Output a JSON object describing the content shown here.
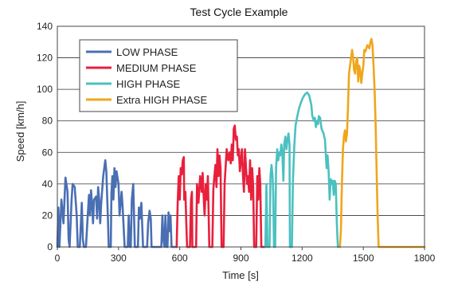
{
  "chart_data": {
    "type": "line",
    "title": "Test Cycle Example",
    "xlabel": "Time [s]",
    "ylabel": "Speed [km/h]",
    "xlim": [
      0,
      1800
    ],
    "ylim": [
      0,
      140
    ],
    "xticks": [
      0,
      300,
      600,
      900,
      1200,
      1500,
      1800
    ],
    "yticks": [
      0,
      20,
      40,
      60,
      80,
      100,
      120,
      140
    ],
    "grid": "horizontal",
    "legend_position": "top-left",
    "series": [
      {
        "name": "LOW PHASE",
        "color": "#4a6fb3",
        "points": [
          [
            0,
            0
          ],
          [
            5,
            25
          ],
          [
            10,
            0
          ],
          [
            20,
            30
          ],
          [
            30,
            15
          ],
          [
            40,
            44
          ],
          [
            50,
            35
          ],
          [
            55,
            5
          ],
          [
            60,
            0
          ],
          [
            70,
            30
          ],
          [
            75,
            40
          ],
          [
            85,
            38
          ],
          [
            95,
            20
          ],
          [
            100,
            0
          ],
          [
            110,
            0
          ],
          [
            120,
            28
          ],
          [
            125,
            5
          ],
          [
            130,
            0
          ],
          [
            140,
            0
          ],
          [
            150,
            22
          ],
          [
            155,
            33
          ],
          [
            160,
            20
          ],
          [
            165,
            36
          ],
          [
            170,
            28
          ],
          [
            175,
            15
          ],
          [
            180,
            30
          ],
          [
            190,
            32
          ],
          [
            195,
            18
          ],
          [
            200,
            38
          ],
          [
            205,
            30
          ],
          [
            210,
            15
          ],
          [
            215,
            28
          ],
          [
            225,
            45
          ],
          [
            235,
            55
          ],
          [
            240,
            48
          ],
          [
            248,
            18
          ],
          [
            252,
            0
          ],
          [
            262,
            0
          ],
          [
            265,
            34
          ],
          [
            270,
            45
          ],
          [
            275,
            30
          ],
          [
            280,
            50
          ],
          [
            285,
            38
          ],
          [
            290,
            48
          ],
          [
            300,
            40
          ],
          [
            305,
            20
          ],
          [
            315,
            35
          ],
          [
            320,
            25
          ],
          [
            330,
            0
          ],
          [
            345,
            0
          ],
          [
            350,
            20
          ],
          [
            355,
            0
          ],
          [
            360,
            0
          ],
          [
            365,
            30
          ],
          [
            372,
            40
          ],
          [
            380,
            0
          ],
          [
            395,
            0
          ],
          [
            400,
            25
          ],
          [
            405,
            18
          ],
          [
            412,
            28
          ],
          [
            420,
            0
          ],
          [
            440,
            0
          ],
          [
            445,
            15
          ],
          [
            452,
            23
          ],
          [
            458,
            18
          ],
          [
            462,
            0
          ],
          [
            510,
            0
          ],
          [
            515,
            20
          ],
          [
            520,
            5
          ],
          [
            525,
            0
          ],
          [
            530,
            20
          ],
          [
            535,
            0
          ],
          [
            540,
            0
          ],
          [
            545,
            22
          ],
          [
            550,
            10
          ],
          [
            555,
            20
          ],
          [
            560,
            0
          ],
          [
            585,
            0
          ]
        ]
      },
      {
        "name": "MEDIUM PHASE",
        "color": "#e8203c",
        "points": [
          [
            585,
            0
          ],
          [
            590,
            28
          ],
          [
            595,
            45
          ],
          [
            600,
            30
          ],
          [
            605,
            50
          ],
          [
            610,
            46
          ],
          [
            615,
            55
          ],
          [
            620,
            57
          ],
          [
            622,
            30
          ],
          [
            628,
            35
          ],
          [
            632,
            15
          ],
          [
            636,
            0
          ],
          [
            650,
            0
          ],
          [
            655,
            30
          ],
          [
            660,
            35
          ],
          [
            662,
            0
          ],
          [
            680,
            0
          ],
          [
            685,
            40
          ],
          [
            692,
            28
          ],
          [
            700,
            45
          ],
          [
            708,
            35
          ],
          [
            712,
            47
          ],
          [
            718,
            30
          ],
          [
            722,
            20
          ],
          [
            728,
            40
          ],
          [
            733,
            30
          ],
          [
            738,
            45
          ],
          [
            745,
            0
          ],
          [
            760,
            0
          ],
          [
            765,
            37
          ],
          [
            770,
            45
          ],
          [
            775,
            52
          ],
          [
            780,
            38
          ],
          [
            785,
            62
          ],
          [
            790,
            45
          ],
          [
            795,
            58
          ],
          [
            800,
            50
          ],
          [
            805,
            0
          ],
          [
            815,
            0
          ],
          [
            820,
            40
          ],
          [
            830,
            62
          ],
          [
            838,
            55
          ],
          [
            845,
            60
          ],
          [
            850,
            53
          ],
          [
            855,
            65
          ],
          [
            860,
            55
          ],
          [
            865,
            75
          ],
          [
            870,
            77
          ],
          [
            875,
            68
          ],
          [
            880,
            70
          ],
          [
            885,
            58
          ],
          [
            890,
            62
          ],
          [
            895,
            48
          ],
          [
            900,
            55
          ],
          [
            905,
            62
          ],
          [
            910,
            45
          ],
          [
            915,
            35
          ],
          [
            920,
            62
          ],
          [
            925,
            50
          ],
          [
            930,
            40
          ],
          [
            935,
            45
          ],
          [
            940,
            35
          ],
          [
            945,
            55
          ],
          [
            950,
            30
          ],
          [
            955,
            50
          ],
          [
            960,
            38
          ],
          [
            965,
            0
          ],
          [
            975,
            0
          ],
          [
            980,
            45
          ],
          [
            985,
            30
          ],
          [
            990,
            50
          ],
          [
            995,
            40
          ],
          [
            1000,
            0
          ],
          [
            1020,
            0
          ]
        ]
      },
      {
        "name": "HIGH PHASE",
        "color": "#4cc0c0",
        "points": [
          [
            1020,
            0
          ],
          [
            1025,
            40
          ],
          [
            1030,
            0
          ],
          [
            1040,
            0
          ],
          [
            1045,
            45
          ],
          [
            1050,
            52
          ],
          [
            1055,
            45
          ],
          [
            1058,
            35
          ],
          [
            1062,
            0
          ],
          [
            1068,
            0
          ],
          [
            1072,
            50
          ],
          [
            1078,
            62
          ],
          [
            1083,
            55
          ],
          [
            1088,
            60
          ],
          [
            1093,
            58
          ],
          [
            1098,
            65
          ],
          [
            1103,
            60
          ],
          [
            1108,
            42
          ],
          [
            1112,
            65
          ],
          [
            1118,
            70
          ],
          [
            1123,
            62
          ],
          [
            1128,
            68
          ],
          [
            1133,
            72
          ],
          [
            1138,
            65
          ],
          [
            1140,
            0
          ],
          [
            1150,
            0
          ],
          [
            1155,
            42
          ],
          [
            1162,
            65
          ],
          [
            1168,
            77
          ],
          [
            1175,
            82
          ],
          [
            1180,
            85
          ],
          [
            1185,
            88
          ],
          [
            1195,
            92
          ],
          [
            1205,
            95
          ],
          [
            1215,
            97
          ],
          [
            1225,
            98
          ],
          [
            1235,
            96
          ],
          [
            1245,
            90
          ],
          [
            1250,
            83
          ],
          [
            1258,
            80
          ],
          [
            1262,
            82
          ],
          [
            1268,
            76
          ],
          [
            1272,
            80
          ],
          [
            1278,
            78
          ],
          [
            1282,
            83
          ],
          [
            1288,
            82
          ],
          [
            1295,
            75
          ],
          [
            1305,
            72
          ],
          [
            1312,
            68
          ],
          [
            1320,
            50
          ],
          [
            1325,
            58
          ],
          [
            1330,
            48
          ],
          [
            1335,
            30
          ],
          [
            1340,
            43
          ],
          [
            1345,
            40
          ],
          [
            1350,
            42
          ],
          [
            1355,
            33
          ],
          [
            1360,
            42
          ],
          [
            1365,
            40
          ],
          [
            1370,
            15
          ],
          [
            1375,
            0
          ],
          [
            1385,
            0
          ]
        ]
      },
      {
        "name": "Extra HIGH PHASE",
        "color": "#f0a61a",
        "points": [
          [
            1385,
            0
          ],
          [
            1390,
            10
          ],
          [
            1395,
            40
          ],
          [
            1400,
            62
          ],
          [
            1405,
            70
          ],
          [
            1410,
            74
          ],
          [
            1415,
            67
          ],
          [
            1420,
            72
          ],
          [
            1425,
            90
          ],
          [
            1430,
            110
          ],
          [
            1440,
            120
          ],
          [
            1445,
            125
          ],
          [
            1450,
            120
          ],
          [
            1455,
            112
          ],
          [
            1460,
            110
          ],
          [
            1465,
            118
          ],
          [
            1470,
            120
          ],
          [
            1475,
            105
          ],
          [
            1480,
            115
          ],
          [
            1485,
            112
          ],
          [
            1490,
            104
          ],
          [
            1495,
            110
          ],
          [
            1500,
            115
          ],
          [
            1505,
            125
          ],
          [
            1510,
            124
          ],
          [
            1515,
            126
          ],
          [
            1520,
            128
          ],
          [
            1525,
            127
          ],
          [
            1530,
            126
          ],
          [
            1535,
            130
          ],
          [
            1540,
            132
          ],
          [
            1545,
            128
          ],
          [
            1550,
            115
          ],
          [
            1555,
            100
          ],
          [
            1560,
            80
          ],
          [
            1565,
            50
          ],
          [
            1570,
            20
          ],
          [
            1575,
            0
          ],
          [
            1800,
            0
          ]
        ]
      }
    ]
  }
}
